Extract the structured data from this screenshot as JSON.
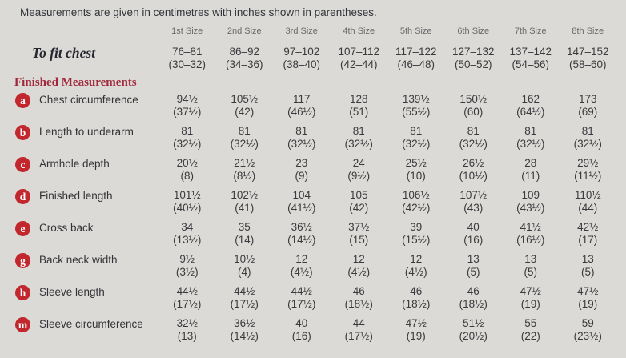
{
  "note": "Measurements are given in centimetres with inches shown in parentheses.",
  "colors": {
    "background": "#dbdad7",
    "badge_red": "#c1272d",
    "section_heading_red": "#a02a3c",
    "body_text": "#3a3a3d",
    "column_header_gray": "#6a6a6c"
  },
  "table": {
    "column_headers": [
      "1st Size",
      "2nd Size",
      "3rd Size",
      "4th Size",
      "5th Size",
      "6th Size",
      "7th Size",
      "8th Size"
    ],
    "fit_row": {
      "label": "To fit chest",
      "values": [
        {
          "cm": "76–81",
          "in": "(30–32)"
        },
        {
          "cm": "86–92",
          "in": "(34–36)"
        },
        {
          "cm": "97–102",
          "in": "(38–40)"
        },
        {
          "cm": "107–112",
          "in": "(42–44)"
        },
        {
          "cm": "117–122",
          "in": "(46–48)"
        },
        {
          "cm": "127–132",
          "in": "(50–52)"
        },
        {
          "cm": "137–142",
          "in": "(54–56)"
        },
        {
          "cm": "147–152",
          "in": "(58–60)"
        }
      ]
    },
    "section_heading": "Finished Measurements",
    "rows": [
      {
        "key": "a",
        "label": "Chest circumference",
        "values": [
          {
            "cm": "94½",
            "in": "(37½)"
          },
          {
            "cm": "105½",
            "in": "(42)"
          },
          {
            "cm": "117",
            "in": "(46½)"
          },
          {
            "cm": "128",
            "in": "(51)"
          },
          {
            "cm": "139½",
            "in": "(55½)"
          },
          {
            "cm": "150½",
            "in": "(60)"
          },
          {
            "cm": "162",
            "in": "(64½)"
          },
          {
            "cm": "173",
            "in": "(69)"
          }
        ]
      },
      {
        "key": "b",
        "label": "Length to underarm",
        "values": [
          {
            "cm": "81",
            "in": "(32½)"
          },
          {
            "cm": "81",
            "in": "(32½)"
          },
          {
            "cm": "81",
            "in": "(32½)"
          },
          {
            "cm": "81",
            "in": "(32½)"
          },
          {
            "cm": "81",
            "in": "(32½)"
          },
          {
            "cm": "81",
            "in": "(32½)"
          },
          {
            "cm": "81",
            "in": "(32½)"
          },
          {
            "cm": "81",
            "in": "(32½)"
          }
        ]
      },
      {
        "key": "c",
        "label": "Armhole depth",
        "values": [
          {
            "cm": "20½",
            "in": "(8)"
          },
          {
            "cm": "21½",
            "in": "(8½)"
          },
          {
            "cm": "23",
            "in": "(9)"
          },
          {
            "cm": "24",
            "in": "(9½)"
          },
          {
            "cm": "25½",
            "in": "(10)"
          },
          {
            "cm": "26½",
            "in": "(10½)"
          },
          {
            "cm": "28",
            "in": "(11)"
          },
          {
            "cm": "29½",
            "in": "(11½)"
          }
        ]
      },
      {
        "key": "d",
        "label": "Finished length",
        "values": [
          {
            "cm": "101½",
            "in": "(40½)"
          },
          {
            "cm": "102½",
            "in": "(41)"
          },
          {
            "cm": "104",
            "in": "(41½)"
          },
          {
            "cm": "105",
            "in": "(42)"
          },
          {
            "cm": "106½",
            "in": "(42½)"
          },
          {
            "cm": "107½",
            "in": "(43)"
          },
          {
            "cm": "109",
            "in": "(43½)"
          },
          {
            "cm": "110½",
            "in": "(44)"
          }
        ]
      },
      {
        "key": "e",
        "label": "Cross back",
        "values": [
          {
            "cm": "34",
            "in": "(13½)"
          },
          {
            "cm": "35",
            "in": "(14)"
          },
          {
            "cm": "36½",
            "in": "(14½)"
          },
          {
            "cm": "37½",
            "in": "(15)"
          },
          {
            "cm": "39",
            "in": "(15½)"
          },
          {
            "cm": "40",
            "in": "(16)"
          },
          {
            "cm": "41½",
            "in": "(16½)"
          },
          {
            "cm": "42½",
            "in": "(17)"
          }
        ]
      },
      {
        "key": "g",
        "label": "Back neck width",
        "values": [
          {
            "cm": "9½",
            "in": "(3½)"
          },
          {
            "cm": "10½",
            "in": "(4)"
          },
          {
            "cm": "12",
            "in": "(4½)"
          },
          {
            "cm": "12",
            "in": "(4½)"
          },
          {
            "cm": "12",
            "in": "(4½)"
          },
          {
            "cm": "13",
            "in": "(5)"
          },
          {
            "cm": "13",
            "in": "(5)"
          },
          {
            "cm": "13",
            "in": "(5)"
          }
        ]
      },
      {
        "key": "h",
        "label": "Sleeve length",
        "values": [
          {
            "cm": "44½",
            "in": "(17½)"
          },
          {
            "cm": "44½",
            "in": "(17½)"
          },
          {
            "cm": "44½",
            "in": "(17½)"
          },
          {
            "cm": "46",
            "in": "(18½)"
          },
          {
            "cm": "46",
            "in": "(18½)"
          },
          {
            "cm": "46",
            "in": "(18½)"
          },
          {
            "cm": "47½",
            "in": "(19)"
          },
          {
            "cm": "47½",
            "in": "(19)"
          }
        ]
      },
      {
        "key": "m",
        "label": "Sleeve circumference",
        "values": [
          {
            "cm": "32½",
            "in": "(13)"
          },
          {
            "cm": "36½",
            "in": "(14½)"
          },
          {
            "cm": "40",
            "in": "(16)"
          },
          {
            "cm": "44",
            "in": "(17½)"
          },
          {
            "cm": "47½",
            "in": "(19)"
          },
          {
            "cm": "51½",
            "in": "(20½)"
          },
          {
            "cm": "55",
            "in": "(22)"
          },
          {
            "cm": "59",
            "in": "(23½)"
          }
        ]
      }
    ]
  }
}
